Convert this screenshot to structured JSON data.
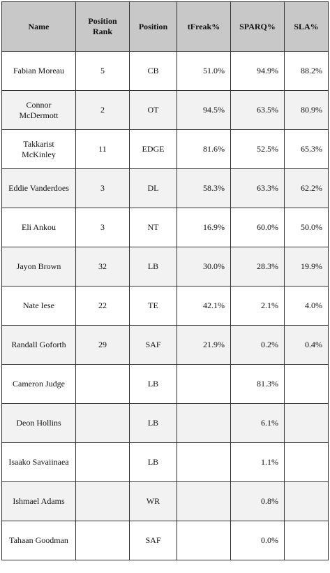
{
  "table": {
    "headers": {
      "name": "Name",
      "rank": "Position Rank",
      "position": "Position",
      "tfreak": "tFreak%",
      "sparq": "SPARQ%",
      "sla": "SLA%"
    },
    "rows": [
      {
        "name": "Fabian Moreau",
        "rank": "5",
        "position": "CB",
        "tfreak": "51.0%",
        "sparq": "94.9%",
        "sla": "88.2%"
      },
      {
        "name": "Connor McDermott",
        "rank": "2",
        "position": "OT",
        "tfreak": "94.5%",
        "sparq": "63.5%",
        "sla": "80.9%"
      },
      {
        "name": "Takkarist McKinley",
        "rank": "11",
        "position": "EDGE",
        "tfreak": "81.6%",
        "sparq": "52.5%",
        "sla": "65.3%"
      },
      {
        "name": "Eddie Vanderdoes",
        "rank": "3",
        "position": "DL",
        "tfreak": "58.3%",
        "sparq": "63.3%",
        "sla": "62.2%"
      },
      {
        "name": "Eli Ankou",
        "rank": "3",
        "position": "NT",
        "tfreak": "16.9%",
        "sparq": "60.0%",
        "sla": "50.0%"
      },
      {
        "name": "Jayon Brown",
        "rank": "32",
        "position": "LB",
        "tfreak": "30.0%",
        "sparq": "28.3%",
        "sla": "19.9%"
      },
      {
        "name": "Nate Iese",
        "rank": "22",
        "position": "TE",
        "tfreak": "42.1%",
        "sparq": "2.1%",
        "sla": "4.0%"
      },
      {
        "name": "Randall Goforth",
        "rank": "29",
        "position": "SAF",
        "tfreak": "21.9%",
        "sparq": "0.2%",
        "sla": "0.4%"
      },
      {
        "name": "Cameron Judge",
        "rank": "",
        "position": "LB",
        "tfreak": "",
        "sparq": "81.3%",
        "sla": ""
      },
      {
        "name": "Deon Hollins",
        "rank": "",
        "position": "LB",
        "tfreak": "",
        "sparq": "6.1%",
        "sla": ""
      },
      {
        "name": "Isaako Savaiinaea",
        "rank": "",
        "position": "LB",
        "tfreak": "",
        "sparq": "1.1%",
        "sla": ""
      },
      {
        "name": "Ishmael Adams",
        "rank": "",
        "position": "WR",
        "tfreak": "",
        "sparq": "0.8%",
        "sla": ""
      },
      {
        "name": "Tahaan Goodman",
        "rank": "",
        "position": "SAF",
        "tfreak": "",
        "sparq": "0.0%",
        "sla": ""
      }
    ]
  }
}
